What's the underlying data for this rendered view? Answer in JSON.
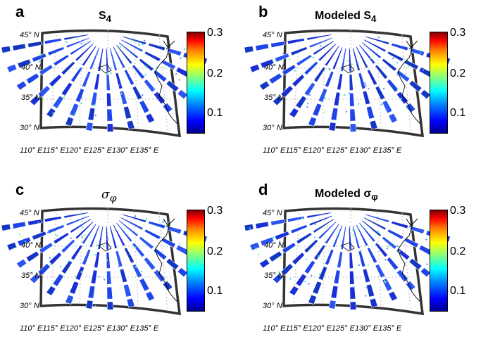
{
  "colorbar": {
    "ticks": [
      "0.3",
      "0.2",
      "0.1"
    ],
    "colormap": [
      "#00008f",
      "#0000ff",
      "#00ffff",
      "#ffff00",
      "#ff0000",
      "#800000"
    ]
  },
  "lat_labels": [
    "45° N",
    "40° N",
    "35° N",
    "30° N"
  ],
  "lon_labels": "110° E115° E120° E125° E130° E135° E",
  "panels": {
    "a": {
      "letter": "a",
      "title_main": "S",
      "title_sub": "4"
    },
    "b": {
      "letter": "b",
      "title_main": "Modeled S",
      "title_sub": "4"
    },
    "c": {
      "letter": "c",
      "title_main": "σ",
      "title_sub": "φ"
    },
    "d": {
      "letter": "d",
      "title_main": "Modeled σ",
      "title_sub": "φ"
    }
  }
}
